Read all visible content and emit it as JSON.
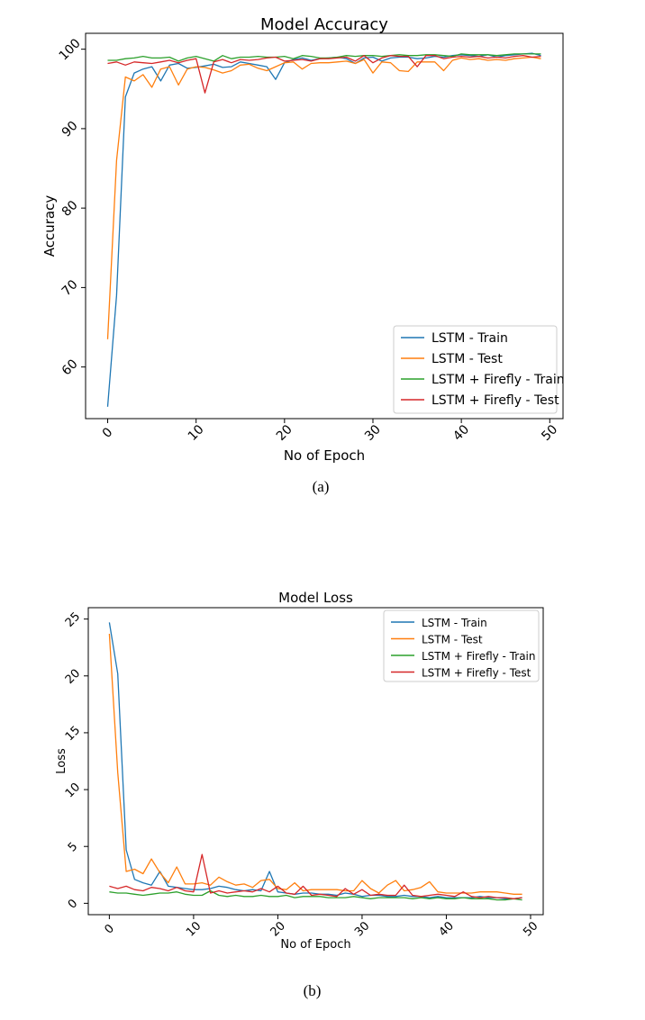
{
  "chart_data": [
    {
      "type": "line",
      "title": "Model Accuracy",
      "xlabel": "No of Epoch",
      "ylabel": "Accuracy",
      "caption": "(a)",
      "xlim": [
        -2.5,
        51.5
      ],
      "ylim": [
        53.5,
        102.0
      ],
      "xticks": [
        0,
        10,
        20,
        30,
        40,
        50
      ],
      "yticks": [
        60,
        70,
        80,
        90,
        100
      ],
      "grid": false,
      "legend_position": "bottom-right",
      "x": [
        0,
        1,
        2,
        3,
        4,
        5,
        6,
        7,
        8,
        9,
        10,
        11,
        12,
        13,
        14,
        15,
        16,
        17,
        18,
        19,
        20,
        21,
        22,
        23,
        24,
        25,
        26,
        27,
        28,
        29,
        30,
        31,
        32,
        33,
        34,
        35,
        36,
        37,
        38,
        39,
        40,
        41,
        42,
        43,
        44,
        45,
        46,
        47,
        48,
        49
      ],
      "series": [
        {
          "name": "LSTM - Train",
          "color": "#1f77b4",
          "values": [
            55.0,
            69.0,
            94.0,
            97.0,
            97.5,
            97.8,
            96.0,
            98.0,
            98.2,
            97.6,
            97.7,
            97.9,
            98.1,
            97.7,
            97.8,
            98.4,
            98.2,
            98.0,
            97.8,
            96.2,
            98.3,
            98.7,
            98.9,
            98.6,
            98.8,
            98.9,
            99.0,
            98.8,
            98.2,
            98.9,
            99.0,
            98.5,
            98.9,
            99.0,
            99.0,
            98.8,
            98.9,
            99.1,
            99.0,
            99.2,
            99.3,
            99.2,
            99.1,
            99.3,
            99.0,
            99.2,
            99.3,
            99.4,
            99.5,
            99.2
          ]
        },
        {
          "name": "LSTM - Test",
          "color": "#ff7f0e",
          "values": [
            63.5,
            86.0,
            96.5,
            96.0,
            96.8,
            95.2,
            97.5,
            97.8,
            95.5,
            97.5,
            97.8,
            97.7,
            97.4,
            97.0,
            97.3,
            98.0,
            98.1,
            97.6,
            97.3,
            97.8,
            98.3,
            98.4,
            97.5,
            98.2,
            98.3,
            98.3,
            98.4,
            98.5,
            98.2,
            98.7,
            97.0,
            98.4,
            98.3,
            97.3,
            97.2,
            98.4,
            98.4,
            98.4,
            97.3,
            98.6,
            98.9,
            98.7,
            98.8,
            98.6,
            98.7,
            98.6,
            98.8,
            98.9,
            99.0,
            98.8
          ]
        },
        {
          "name": "LSTM + Firefly - Train",
          "color": "#2ca02c",
          "values": [
            98.6,
            98.6,
            98.8,
            98.9,
            99.1,
            98.9,
            98.9,
            99.0,
            98.5,
            98.9,
            99.1,
            98.8,
            98.5,
            99.2,
            98.8,
            99.0,
            99.0,
            99.1,
            99.0,
            99.0,
            99.1,
            98.8,
            99.2,
            99.1,
            98.9,
            98.9,
            99.0,
            99.2,
            99.1,
            99.2,
            99.2,
            99.1,
            99.2,
            99.3,
            99.2,
            99.2,
            99.3,
            99.3,
            99.2,
            99.1,
            99.4,
            99.3,
            99.3,
            99.3,
            99.2,
            99.3,
            99.4,
            99.4,
            99.4,
            99.4
          ]
        },
        {
          "name": "LSTM + Firefly - Test",
          "color": "#d62728",
          "values": [
            98.2,
            98.4,
            98.0,
            98.4,
            98.3,
            98.2,
            98.4,
            98.6,
            98.3,
            98.6,
            98.8,
            94.5,
            98.4,
            98.7,
            98.3,
            98.7,
            98.6,
            98.7,
            98.9,
            99.0,
            98.5,
            98.6,
            98.7,
            98.5,
            98.8,
            98.8,
            98.9,
            99.0,
            98.5,
            99.2,
            98.3,
            98.9,
            99.2,
            99.1,
            99.1,
            97.8,
            99.2,
            99.2,
            98.8,
            99.0,
            99.1,
            99.0,
            99.1,
            98.9,
            99.0,
            98.9,
            99.1,
            99.2,
            99.0,
            99.1
          ]
        }
      ]
    },
    {
      "type": "line",
      "title": "Model Loss",
      "xlabel": "No of Epoch",
      "ylabel": "Loss",
      "caption": "(b)",
      "xlim": [
        -2.5,
        51.5
      ],
      "ylim": [
        -1.0,
        26.0
      ],
      "xticks": [
        0,
        10,
        20,
        30,
        40,
        50
      ],
      "yticks": [
        0,
        5,
        10,
        15,
        20,
        25
      ],
      "grid": false,
      "legend_position": "top-right",
      "x": [
        0,
        1,
        2,
        3,
        4,
        5,
        6,
        7,
        8,
        9,
        10,
        11,
        12,
        13,
        14,
        15,
        16,
        17,
        18,
        19,
        20,
        21,
        22,
        23,
        24,
        25,
        26,
        27,
        28,
        29,
        30,
        31,
        32,
        33,
        34,
        35,
        36,
        37,
        38,
        39,
        40,
        41,
        42,
        43,
        44,
        45,
        46,
        47,
        48,
        49
      ],
      "series": [
        {
          "name": "LSTM - Train",
          "color": "#1f77b4",
          "values": [
            24.7,
            20.2,
            4.7,
            2.1,
            1.8,
            1.6,
            2.8,
            1.5,
            1.4,
            1.3,
            1.2,
            1.2,
            1.3,
            1.5,
            1.4,
            1.2,
            1.1,
            1.2,
            1.1,
            2.8,
            1.0,
            0.9,
            0.8,
            0.9,
            0.9,
            0.8,
            0.8,
            0.7,
            0.9,
            0.8,
            0.6,
            0.7,
            0.7,
            0.6,
            0.6,
            0.7,
            0.6,
            0.6,
            0.5,
            0.6,
            0.5,
            0.5,
            0.5,
            0.5,
            0.6,
            0.5,
            0.5,
            0.4,
            0.4,
            0.5
          ]
        },
        {
          "name": "LSTM - Test",
          "color": "#ff7f0e",
          "values": [
            23.7,
            11.5,
            2.8,
            3.0,
            2.6,
            3.9,
            2.7,
            1.8,
            3.2,
            1.7,
            1.7,
            1.8,
            1.6,
            2.3,
            1.9,
            1.6,
            1.7,
            1.4,
            2.0,
            2.1,
            1.3,
            1.2,
            1.8,
            1.1,
            1.2,
            1.2,
            1.2,
            1.2,
            1.1,
            1.1,
            2.0,
            1.3,
            0.9,
            1.6,
            2.0,
            1.1,
            1.2,
            1.4,
            1.9,
            1.0,
            0.9,
            0.9,
            0.9,
            0.9,
            1.0,
            1.0,
            1.0,
            0.9,
            0.8,
            0.8
          ]
        },
        {
          "name": "LSTM + Firefly - Train",
          "color": "#2ca02c",
          "values": [
            1.0,
            0.9,
            0.9,
            0.8,
            0.7,
            0.8,
            0.9,
            0.9,
            1.0,
            0.8,
            0.7,
            0.7,
            1.1,
            0.7,
            0.6,
            0.7,
            0.6,
            0.6,
            0.7,
            0.6,
            0.6,
            0.7,
            0.5,
            0.6,
            0.6,
            0.6,
            0.5,
            0.5,
            0.5,
            0.6,
            0.5,
            0.4,
            0.5,
            0.5,
            0.5,
            0.5,
            0.4,
            0.5,
            0.4,
            0.5,
            0.4,
            0.4,
            0.5,
            0.4,
            0.4,
            0.4,
            0.3,
            0.3,
            0.4,
            0.3
          ]
        },
        {
          "name": "LSTM + Firefly - Test",
          "color": "#d62728",
          "values": [
            1.5,
            1.3,
            1.5,
            1.2,
            1.1,
            1.4,
            1.3,
            1.1,
            1.4,
            1.1,
            1.0,
            4.3,
            0.9,
            1.1,
            0.9,
            1.0,
            1.1,
            1.0,
            1.3,
            1.0,
            1.5,
            0.9,
            0.8,
            1.5,
            0.7,
            0.8,
            0.7,
            0.6,
            1.3,
            0.8,
            1.2,
            0.7,
            0.8,
            0.7,
            0.7,
            1.6,
            0.7,
            0.6,
            0.7,
            0.8,
            0.7,
            0.6,
            1.0,
            0.6,
            0.5,
            0.6,
            0.5,
            0.5,
            0.4,
            0.5
          ]
        }
      ]
    }
  ]
}
